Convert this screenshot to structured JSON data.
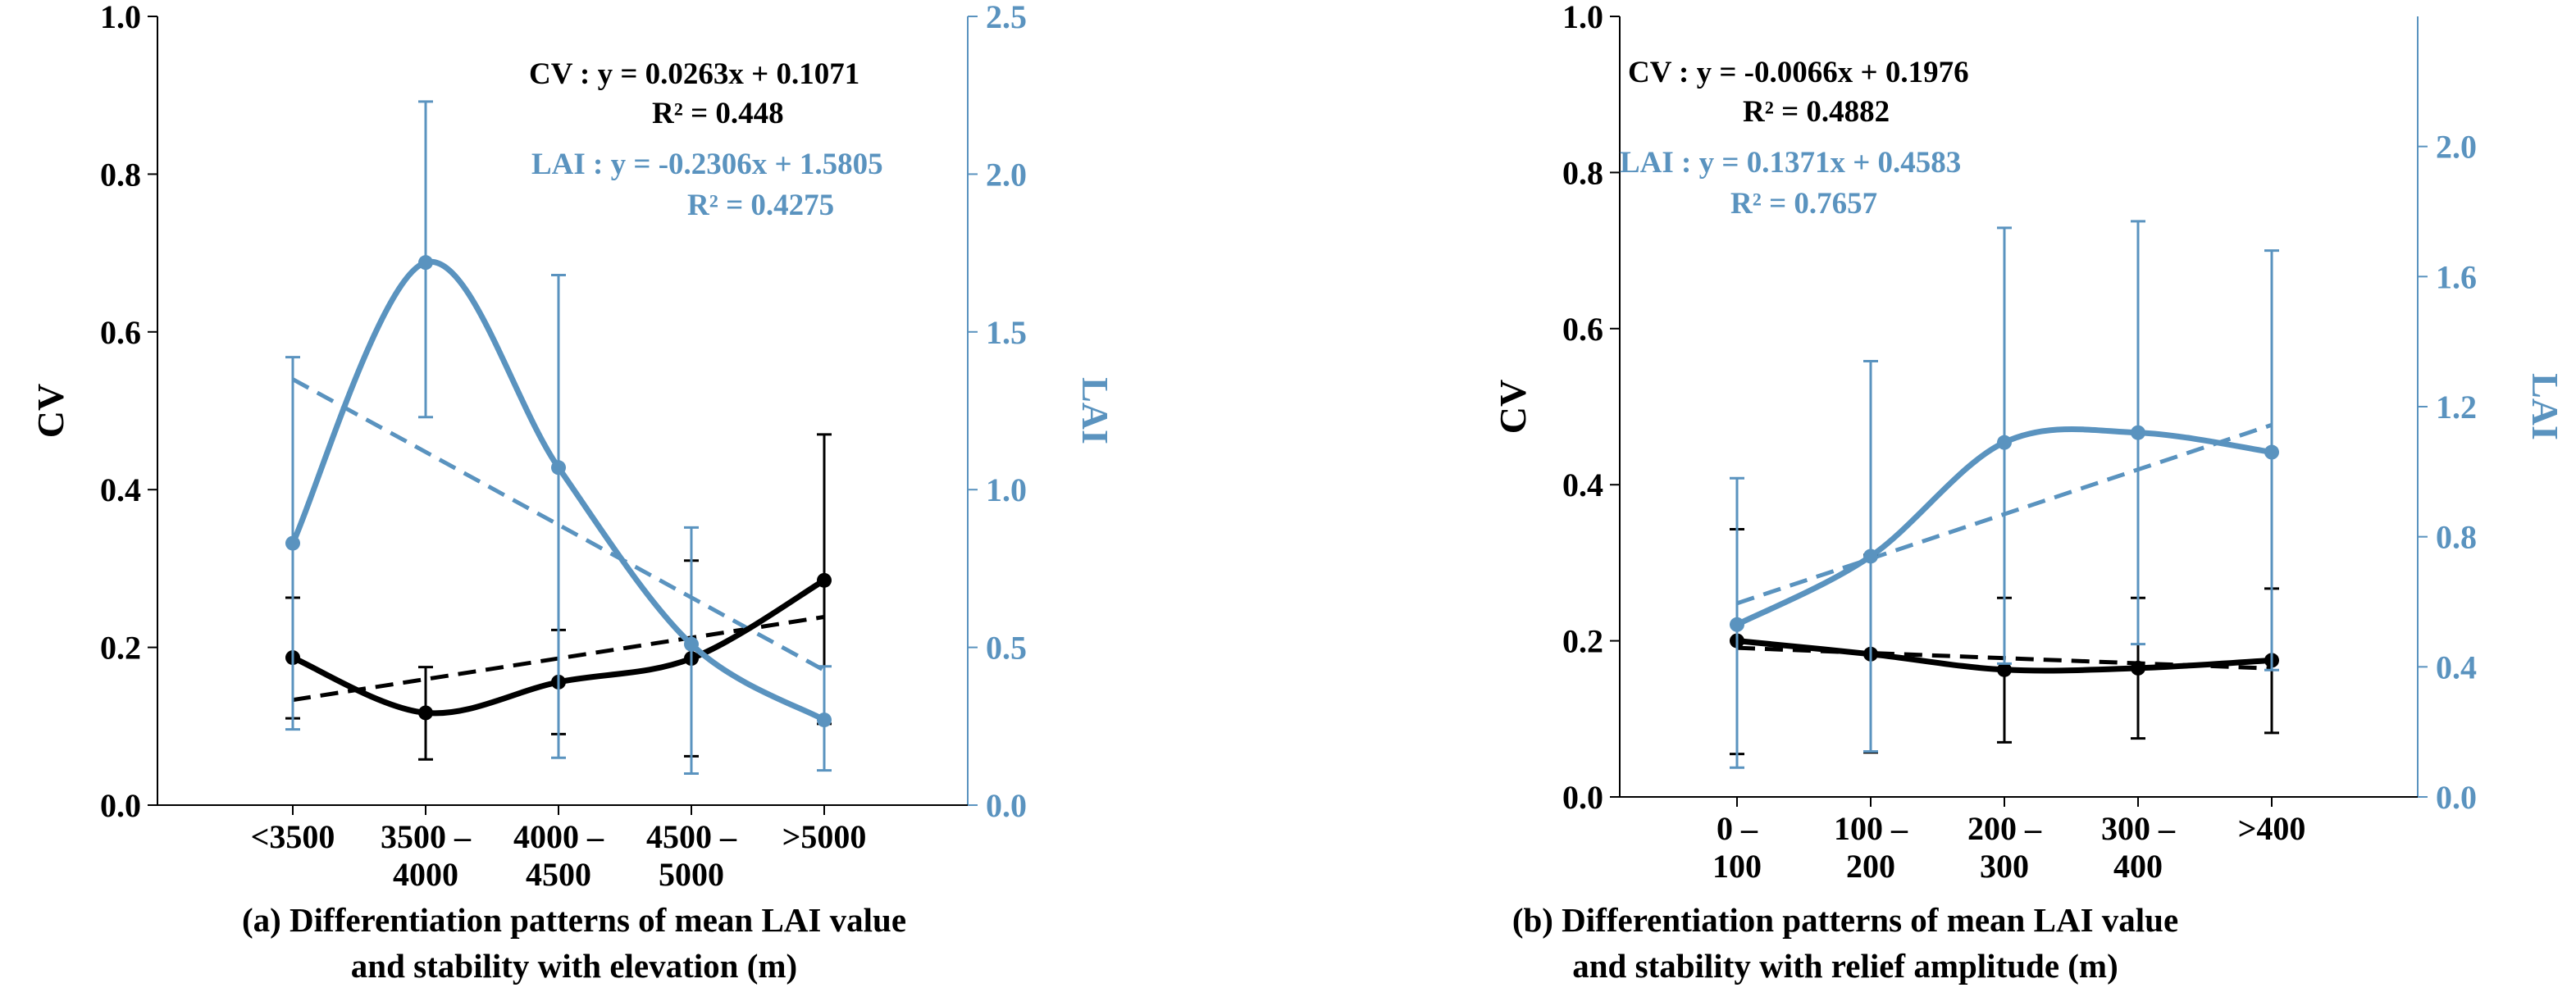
{
  "chart_data": [
    {
      "type": "line",
      "caption": [
        "(a) Differentiation patterns of mean LAI value",
        "and stability with elevation (m)"
      ],
      "categories": [
        [
          "<3500"
        ],
        [
          "3500 –",
          "4000"
        ],
        [
          "4000 –",
          "4500"
        ],
        [
          "4500 –",
          "5000"
        ],
        [
          ">5000"
        ]
      ],
      "ylabel_left": "CV",
      "ylabel_right": "LAI",
      "ylim_left": [
        0,
        1.0
      ],
      "ylim_right": [
        0,
        2.5
      ],
      "yticks_left": [
        "0.0",
        "0.2",
        "0.4",
        "0.6",
        "0.8",
        "1.0"
      ],
      "yticks_right": [
        "0.0",
        "0.5",
        "1.0",
        "1.5",
        "2.0",
        "2.5"
      ],
      "colors": {
        "cv": "#000000",
        "lai": "#5a93bf"
      },
      "series": [
        {
          "name": "CV",
          "axis": "left",
          "values": [
            0.187,
            0.117,
            0.156,
            0.186,
            0.285
          ],
          "err_low": [
            0.11,
            0.058,
            0.09,
            0.062,
            0.103
          ],
          "err_high": [
            0.263,
            0.175,
            0.222,
            0.31,
            0.47
          ]
        },
        {
          "name": "LAI",
          "axis": "right",
          "values": [
            0.83,
            1.72,
            1.07,
            0.51,
            0.27
          ],
          "err_low": [
            0.24,
            1.23,
            0.15,
            0.1,
            0.11
          ],
          "err_high": [
            1.42,
            2.23,
            1.68,
            0.88,
            0.44
          ]
        }
      ],
      "trendlines": [
        {
          "name": "CV trend",
          "axis": "left",
          "slope": 0.0263,
          "intercept": 0.1071
        },
        {
          "name": "LAI trend",
          "axis": "right",
          "slope": -0.2306,
          "intercept": 1.5805
        }
      ],
      "annotations": {
        "cv_eq": "CV :  y = 0.0263x + 0.1071",
        "cv_r2": "R² = 0.448",
        "lai_eq": "LAI :  y = -0.2306x + 1.5805",
        "lai_r2": "R² = 0.4275"
      }
    },
    {
      "type": "line",
      "caption": [
        "(b) Differentiation patterns of mean LAI value",
        "and stability with relief amplitude (m)"
      ],
      "categories": [
        [
          "0 –",
          "100"
        ],
        [
          "100 –",
          "200"
        ],
        [
          "200 –",
          "300"
        ],
        [
          "300 –",
          "400"
        ],
        [
          ">400"
        ]
      ],
      "ylabel_left": "CV",
      "ylabel_right": "LAI",
      "ylim_left": [
        0,
        1.0
      ],
      "ylim_right": [
        0,
        2.4
      ],
      "yticks_left": [
        "0.0",
        "0.2",
        "0.4",
        "0.6",
        "0.8",
        "1.0"
      ],
      "yticks_right": [
        "0.0",
        "0.4",
        "0.8",
        "1.2",
        "1.6",
        "2.0"
      ],
      "colors": {
        "cv": "#000000",
        "lai": "#5a93bf"
      },
      "series": [
        {
          "name": "CV",
          "axis": "left",
          "values": [
            0.2,
            0.183,
            0.163,
            0.165,
            0.175
          ],
          "err_low": [
            0.055,
            0.057,
            0.07,
            0.075,
            0.082
          ],
          "err_high": [
            0.343,
            0.31,
            0.255,
            0.255,
            0.267
          ]
        },
        {
          "name": "LAI",
          "axis": "right",
          "values": [
            0.53,
            0.74,
            1.09,
            1.12,
            1.06
          ],
          "err_low": [
            0.09,
            0.14,
            0.41,
            0.47,
            0.39
          ],
          "err_high": [
            0.98,
            1.34,
            1.75,
            1.77,
            1.68
          ]
        }
      ],
      "trendlines": [
        {
          "name": "CV trend",
          "axis": "left",
          "slope": -0.0066,
          "intercept": 0.1976
        },
        {
          "name": "LAI trend",
          "axis": "right",
          "slope": 0.1371,
          "intercept": 0.4583
        }
      ],
      "annotations": {
        "cv_eq": "CV : y = -0.0066x + 0.1976",
        "cv_r2": "R² = 0.4882",
        "lai_eq": "LAI : y = 0.1371x + 0.4583",
        "lai_r2": "R² = 0.7657"
      }
    }
  ]
}
